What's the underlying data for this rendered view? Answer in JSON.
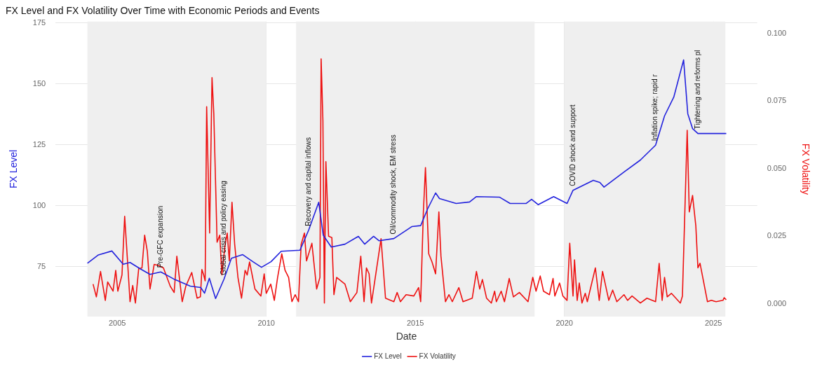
{
  "chart_data": {
    "type": "line",
    "title": "FX Level and FX Volatility Over Time with Economic Periods and Events",
    "xlabel": "Date",
    "ylabel": "FX Level",
    "y2label": "FX Volatility",
    "xlim": [
      2002.93,
      2026.47
    ],
    "xticks": [
      2005,
      2010,
      2015,
      2020,
      2025
    ],
    "ylim": [
      54.5,
      175.5
    ],
    "yticks": [
      75,
      100,
      125,
      150,
      175
    ],
    "y2lim": [
      -0.0047,
      0.1044
    ],
    "y2ticks": [
      {
        "value": 0,
        "label": "0.000"
      },
      0.025,
      {
        "value": 0.05,
        "label": "0.050"
      },
      0.075,
      {
        "value": 0.1,
        "label": "0.100"
      }
    ],
    "grid": true,
    "legend": "bottom",
    "marker": "none",
    "line_style": "solid",
    "bands": [
      {
        "axis": "x",
        "from": 2004.0,
        "to": 2010.0,
        "color": "#efefef"
      },
      {
        "axis": "x",
        "from": 2011.0,
        "to": 2019.0,
        "color": "#efefef"
      },
      {
        "axis": "x",
        "from": 2020.0,
        "to": 2025.4,
        "color": "#efefef"
      }
    ],
    "annotations": [
      {
        "text": "Pre-GFC expansion",
        "x": 2006.46,
        "y": 72.8
      },
      {
        "text": "Global crisis and policy easing",
        "x": 2008.58,
        "y": 69.8
      },
      {
        "text": "Recovery and capital inflows",
        "x": 2011.42,
        "y": 89.9
      },
      {
        "text": "Oil/commodity shock, EM stress",
        "x": 2014.28,
        "y": 86.5
      },
      {
        "text": "COVID shock and support",
        "x": 2020.29,
        "y": 106.3
      },
      {
        "text": "Inflation spike; rapid r",
        "x": 2023.06,
        "y": 124.8
      },
      {
        "text": "Tightening and reforms pl",
        "x": 2024.48,
        "y": 129.6
      }
    ],
    "series": [
      {
        "name": "FX Level",
        "color": "#2222dd",
        "x": [
          2004.0,
          2004.37,
          2004.82,
          2005.2,
          2005.43,
          2005.77,
          2006.1,
          2006.46,
          2006.9,
          2007.45,
          2007.8,
          2007.93,
          2008.09,
          2008.3,
          2008.58,
          2008.83,
          2009.21,
          2009.55,
          2009.84,
          2010.16,
          2010.5,
          2011.13,
          2011.42,
          2011.76,
          2011.91,
          2012.18,
          2012.64,
          2013.09,
          2013.3,
          2013.6,
          2013.78,
          2014.28,
          2014.88,
          2015.18,
          2015.41,
          2015.68,
          2015.81,
          2016.37,
          2016.82,
          2017.05,
          2017.82,
          2018.18,
          2018.72,
          2018.9,
          2019.12,
          2019.64,
          2020.09,
          2020.29,
          2020.97,
          2021.19,
          2021.33,
          2022.0,
          2022.55,
          2023.06,
          2023.36,
          2023.67,
          2024.0,
          2024.14,
          2024.3,
          2024.48,
          2025.43
        ],
        "values": [
          76.4,
          79.8,
          81.4,
          76,
          76.7,
          74.1,
          71.8,
          72.8,
          69.9,
          67,
          66.4,
          64.1,
          70.2,
          61.9,
          69.8,
          78.4,
          79.9,
          77,
          74.7,
          77,
          81.3,
          81.7,
          89.9,
          101.4,
          87.9,
          83,
          84.2,
          87.4,
          84.2,
          87.4,
          85.6,
          86.5,
          91.4,
          91.8,
          98.6,
          105.2,
          102.9,
          100.9,
          101.5,
          103.7,
          103.5,
          100.9,
          100.9,
          102.6,
          100.4,
          103.7,
          100.9,
          106.3,
          110.4,
          109.5,
          107.6,
          113.8,
          118.7,
          124.8,
          136.8,
          144.5,
          159.8,
          137.7,
          131.6,
          129.6,
          129.6
        ]
      },
      {
        "name": "FX Volatility",
        "color": "#ee1111",
        "axis": "y2",
        "x": [
          2004.19,
          2004.3,
          2004.44,
          2004.6,
          2004.68,
          2004.86,
          2004.95,
          2005.02,
          2005.16,
          2005.25,
          2005.34,
          2005.43,
          2005.52,
          2005.61,
          2005.72,
          2005.83,
          2005.92,
          2006.01,
          2006.1,
          2006.24,
          2006.38,
          2006.55,
          2006.78,
          2006.91,
          2007.0,
          2007.18,
          2007.3,
          2007.5,
          2007.68,
          2007.79,
          2007.84,
          2007.9,
          2007.95,
          2008.0,
          2008.1,
          2008.18,
          2008.24,
          2008.35,
          2008.44,
          2008.51,
          2008.61,
          2008.69,
          2008.76,
          2008.85,
          2008.94,
          2009.05,
          2009.17,
          2009.29,
          2009.36,
          2009.44,
          2009.62,
          2009.82,
          2009.93,
          2010.0,
          2010.15,
          2010.27,
          2010.38,
          2010.52,
          2010.63,
          2010.75,
          2010.86,
          2010.97,
          2011.08,
          2011.17,
          2011.28,
          2011.35,
          2011.53,
          2011.69,
          2011.8,
          2011.84,
          2011.9,
          2011.95,
          2012.0,
          2012.09,
          2012.2,
          2012.27,
          2012.36,
          2012.64,
          2012.82,
          2013.04,
          2013.17,
          2013.28,
          2013.36,
          2013.45,
          2013.53,
          2013.85,
          2014.0,
          2014.28,
          2014.39,
          2014.5,
          2014.69,
          2014.95,
          2015.11,
          2015.18,
          2015.27,
          2015.34,
          2015.45,
          2015.56,
          2015.68,
          2015.79,
          2015.86,
          2016.01,
          2016.13,
          2016.24,
          2016.46,
          2016.6,
          2016.91,
          2017.05,
          2017.16,
          2017.25,
          2017.39,
          2017.55,
          2017.66,
          2017.72,
          2017.88,
          2017.99,
          2018.15,
          2018.29,
          2018.49,
          2018.78,
          2018.94,
          2019.05,
          2019.19,
          2019.3,
          2019.5,
          2019.62,
          2019.68,
          2019.84,
          2019.95,
          2020.09,
          2020.18,
          2020.29,
          2020.34,
          2020.43,
          2020.5,
          2020.59,
          2020.7,
          2020.77,
          2021.04,
          2021.17,
          2021.28,
          2021.49,
          2021.62,
          2021.76,
          2022.0,
          2022.12,
          2022.27,
          2022.55,
          2022.77,
          2023.06,
          2023.18,
          2023.28,
          2023.36,
          2023.45,
          2023.59,
          2023.89,
          2023.96,
          2024.12,
          2024.19,
          2024.3,
          2024.41,
          2024.48,
          2024.55,
          2024.8,
          2024.93,
          2025.09,
          2025.32,
          2025.36,
          2025.43
        ],
        "values": [
          0.0073,
          0.0026,
          0.012,
          0.0013,
          0.0081,
          0.0047,
          0.0124,
          0.0047,
          0.0107,
          0.0324,
          0.0168,
          0.0008,
          0.0068,
          0.0003,
          0.013,
          0.0133,
          0.0254,
          0.0194,
          0.0055,
          0.0146,
          0.0142,
          0.0133,
          0.0065,
          0.0042,
          0.0176,
          0.0008,
          0.0065,
          0.0116,
          0.0021,
          0.0026,
          0.0127,
          0.0107,
          0.0085,
          0.0729,
          0.0262,
          0.0837,
          0.0703,
          0.0228,
          0.0254,
          0.0107,
          0.0211,
          0.0262,
          0.0159,
          0.0376,
          0.022,
          0.0098,
          0.0021,
          0.0124,
          0.0107,
          0.0155,
          0.0055,
          0.0029,
          0.0111,
          0.0039,
          0.0073,
          0.0013,
          0.0098,
          0.0185,
          0.0124,
          0.0098,
          0.0008,
          0.0034,
          0.0008,
          0.022,
          0.0262,
          0.0159,
          0.0224,
          0.0055,
          0.0098,
          0.0906,
          0.0677,
          0.0003,
          0.0526,
          0.025,
          0.0245,
          0.0034,
          0.0098,
          0.0073,
          0.0008,
          0.0042,
          0.0176,
          0.0008,
          0.0133,
          0.0111,
          0.0003,
          0.0241,
          0.0021,
          0.0008,
          0.0042,
          0.0008,
          0.0034,
          0.0029,
          0.006,
          0.0008,
          0.034,
          0.0504,
          0.0185,
          0.0155,
          0.0111,
          0.034,
          0.0176,
          0.0008,
          0.0034,
          0.0008,
          0.006,
          0.0008,
          0.0021,
          0.012,
          0.0055,
          0.009,
          0.0021,
          0.0003,
          0.0047,
          0.0008,
          0.0047,
          0.0008,
          0.0094,
          0.0026,
          0.0042,
          0.0008,
          0.0098,
          0.0047,
          0.0103,
          0.0047,
          0.0034,
          0.0094,
          0.0029,
          0.0077,
          0.0029,
          0.0013,
          0.0224,
          0.0029,
          0.0163,
          0.0013,
          0.0077,
          0.0003,
          0.0039,
          0.0008,
          0.0133,
          0.0013,
          0.012,
          0.0013,
          0.0051,
          0.0008,
          0.0034,
          0.0013,
          0.0029,
          0.0003,
          0.0021,
          0.0008,
          0.015,
          0.0013,
          0.0098,
          0.0026,
          0.0039,
          0.0003,
          0.0029,
          0.0642,
          0.034,
          0.0401,
          0.0288,
          0.0133,
          0.015,
          0.0008,
          0.0013,
          0.0008,
          0.0013,
          0.0023,
          0.0015
        ]
      }
    ]
  }
}
